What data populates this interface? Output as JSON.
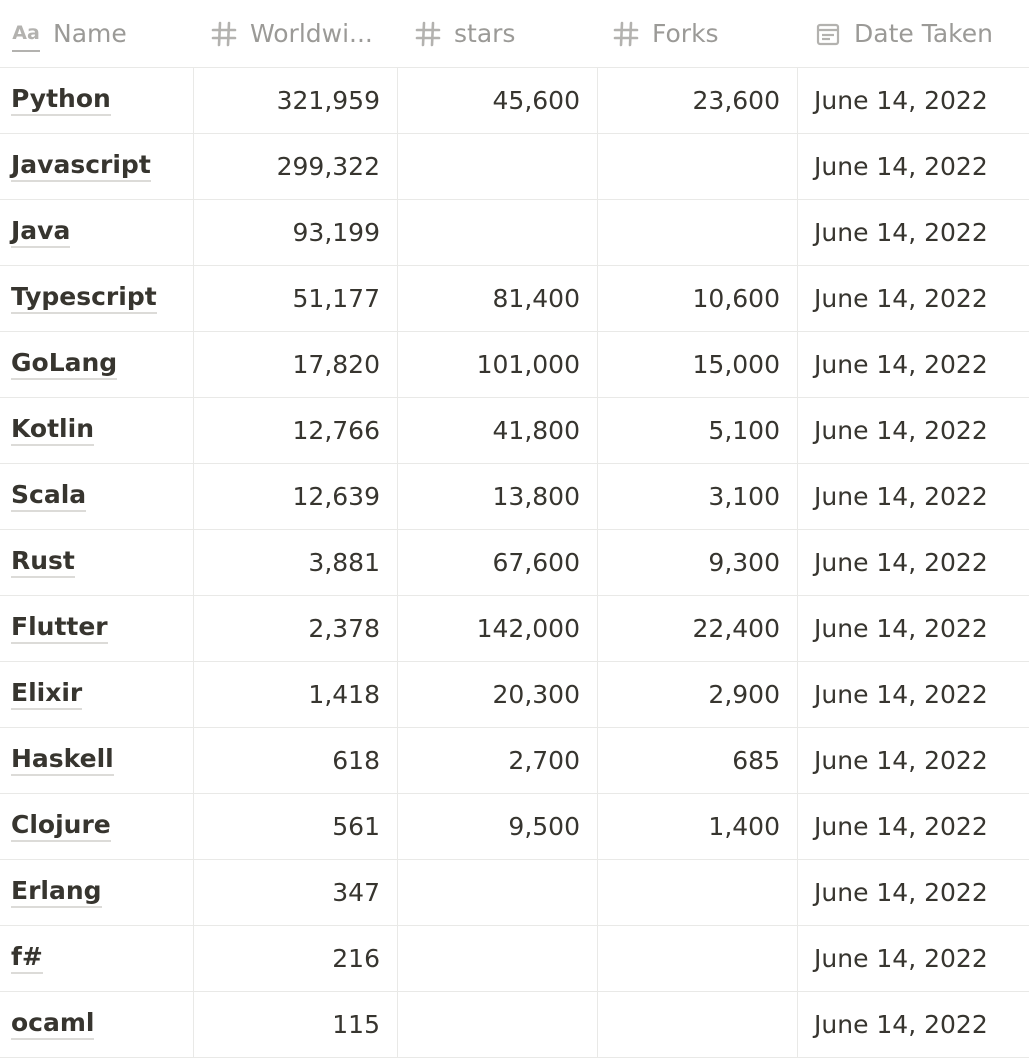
{
  "columns": [
    {
      "key": "name",
      "label": "Name",
      "icon": "text-property-icon"
    },
    {
      "key": "worldwide",
      "label": "Worldwi...",
      "icon": "number-property-icon"
    },
    {
      "key": "stars",
      "label": "stars",
      "icon": "number-property-icon"
    },
    {
      "key": "forks",
      "label": "Forks",
      "icon": "number-property-icon"
    },
    {
      "key": "date",
      "label": "Date Taken",
      "icon": "calendar-property-icon"
    }
  ],
  "rows": [
    {
      "name": "Python",
      "worldwide": "321,959",
      "stars": "45,600",
      "forks": "23,600",
      "date": "June 14, 2022"
    },
    {
      "name": "Javascript",
      "worldwide": "299,322",
      "stars": "",
      "forks": "",
      "date": "June 14, 2022"
    },
    {
      "name": "Java",
      "worldwide": "93,199",
      "stars": "",
      "forks": "",
      "date": "June 14, 2022"
    },
    {
      "name": "Typescript",
      "worldwide": "51,177",
      "stars": "81,400",
      "forks": "10,600",
      "date": "June 14, 2022"
    },
    {
      "name": "GoLang",
      "worldwide": "17,820",
      "stars": "101,000",
      "forks": "15,000",
      "date": "June 14, 2022"
    },
    {
      "name": "Kotlin",
      "worldwide": "12,766",
      "stars": "41,800",
      "forks": "5,100",
      "date": "June 14, 2022"
    },
    {
      "name": "Scala",
      "worldwide": "12,639",
      "stars": "13,800",
      "forks": "3,100",
      "date": "June 14, 2022"
    },
    {
      "name": "Rust",
      "worldwide": "3,881",
      "stars": "67,600",
      "forks": "9,300",
      "date": "June 14, 2022"
    },
    {
      "name": "Flutter",
      "worldwide": "2,378",
      "stars": "142,000",
      "forks": "22,400",
      "date": "June 14, 2022"
    },
    {
      "name": "Elixir",
      "worldwide": "1,418",
      "stars": "20,300",
      "forks": "2,900",
      "date": "June 14, 2022"
    },
    {
      "name": "Haskell",
      "worldwide": "618",
      "stars": "2,700",
      "forks": "685",
      "date": "June 14, 2022"
    },
    {
      "name": "Clojure",
      "worldwide": "561",
      "stars": "9,500",
      "forks": "1,400",
      "date": "June 14, 2022"
    },
    {
      "name": "Erlang",
      "worldwide": "347",
      "stars": "",
      "forks": "",
      "date": "June 14, 2022"
    },
    {
      "name": "f#",
      "worldwide": "216",
      "stars": "",
      "forks": "",
      "date": "June 14, 2022"
    },
    {
      "name": "ocaml",
      "worldwide": "115",
      "stars": "",
      "forks": "",
      "date": "June 14, 2022"
    }
  ]
}
